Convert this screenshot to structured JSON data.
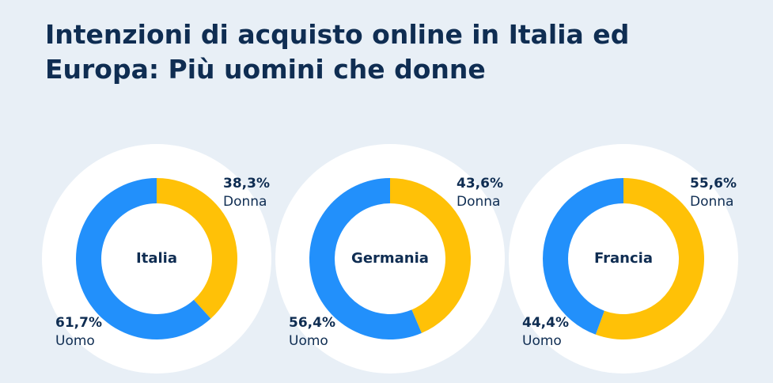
{
  "title": "Intenzioni di acquisto online in Italia ed Europa: Più uomini che donne",
  "chart_data": [
    {
      "type": "donut",
      "title": "Italia",
      "categories": [
        "Donna",
        "Uomo"
      ],
      "values": [
        38.3,
        61.7
      ],
      "value_labels": [
        "38,3%",
        "61,7%"
      ],
      "colors": [
        "#ffc107",
        "#2290fb"
      ]
    },
    {
      "type": "donut",
      "title": "Germania",
      "categories": [
        "Donna",
        "Uomo"
      ],
      "values": [
        43.6,
        56.4
      ],
      "value_labels": [
        "43,6%",
        "56,4%"
      ],
      "colors": [
        "#ffc107",
        "#2290fb"
      ]
    },
    {
      "type": "donut",
      "title": "Francia",
      "categories": [
        "Donna",
        "Uomo"
      ],
      "values": [
        55.6,
        44.4
      ],
      "value_labels": [
        "55,6%",
        "44,4%"
      ],
      "colors": [
        "#ffc107",
        "#2290fb"
      ]
    }
  ]
}
